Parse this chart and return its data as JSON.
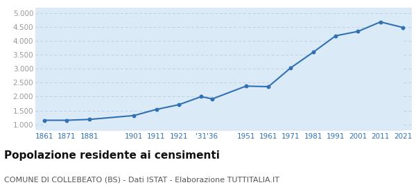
{
  "years": [
    1861,
    1871,
    1881,
    1901,
    1911,
    1921,
    1931,
    1936,
    1951,
    1961,
    1971,
    1981,
    1991,
    2001,
    2011,
    2021
  ],
  "x_labels": [
    "1861",
    "1871",
    "1881",
    "1901",
    "1911",
    "1921",
    "'31",
    "'36",
    "1951",
    "1961",
    "1971",
    "1981",
    "1991",
    "2001",
    "2011",
    "2021"
  ],
  "population": [
    1150,
    1150,
    1180,
    1320,
    1540,
    1710,
    2000,
    1920,
    2380,
    2360,
    3040,
    3600,
    4190,
    4350,
    4690,
    4490
  ],
  "line_color": "#3070b3",
  "fill_color": "#daeaf7",
  "marker_color": "#3070b3",
  "background_color": "#ffffff",
  "grid_color": "#c0d0e0",
  "ytick_color": "#999999",
  "xtick_color": "#3070b3",
  "title": "Popolazione residente ai censimenti",
  "subtitle": "COMUNE DI COLLEBEATO (BS) - Dati ISTAT - Elaborazione TUTTITALIA.IT",
  "ylim": [
    800,
    5200
  ],
  "yticks": [
    1000,
    1500,
    2000,
    2500,
    3000,
    3500,
    4000,
    4500,
    5000
  ],
  "title_fontsize": 11,
  "subtitle_fontsize": 8,
  "axis_fontsize": 7.5
}
